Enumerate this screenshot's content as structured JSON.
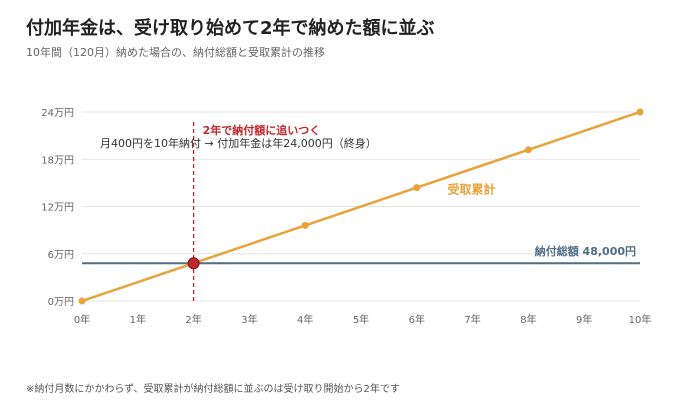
{
  "header": {
    "title": "付加年金は、受け取り始めて2年で納めた額に並ぶ",
    "subtitle": "10年間（120月）納めた場合の、納付総額と受取累計の推移"
  },
  "footnote": "※納付月数にかかわらず、受取累計が納付総額に並ぶのは受け取り開始から2年です",
  "colors": {
    "received": "#E8A33A",
    "paid": "#4F6E87",
    "marker": "#C0282A",
    "grid": "#E6E6E6",
    "axis_text": "#666666"
  },
  "chart_data": {
    "type": "line",
    "x": [
      0,
      2,
      4,
      6,
      8,
      10
    ],
    "x_ticks": [
      "0年",
      "1年",
      "2年",
      "3年",
      "4年",
      "5年",
      "6年",
      "7年",
      "8年",
      "9年",
      "10年"
    ],
    "y_ticks": [
      "0万円",
      "6万円",
      "12万円",
      "18万円",
      "24万円"
    ],
    "xlim": [
      0,
      10
    ],
    "ylim": [
      0,
      240000
    ],
    "grid": true,
    "series": [
      {
        "name": "受取累計",
        "values": [
          0,
          48000,
          96000,
          144000,
          192000,
          240000
        ]
      },
      {
        "name": "納付総額 48,000円",
        "values": [
          48000,
          48000,
          48000,
          48000,
          48000,
          48000
        ]
      }
    ],
    "crossover": {
      "x": 2,
      "y": 48000,
      "label": "2年で納付額に追いつく"
    },
    "annotation": "月400円を10年納付 → 付加年金は年24,000円（終身）"
  }
}
